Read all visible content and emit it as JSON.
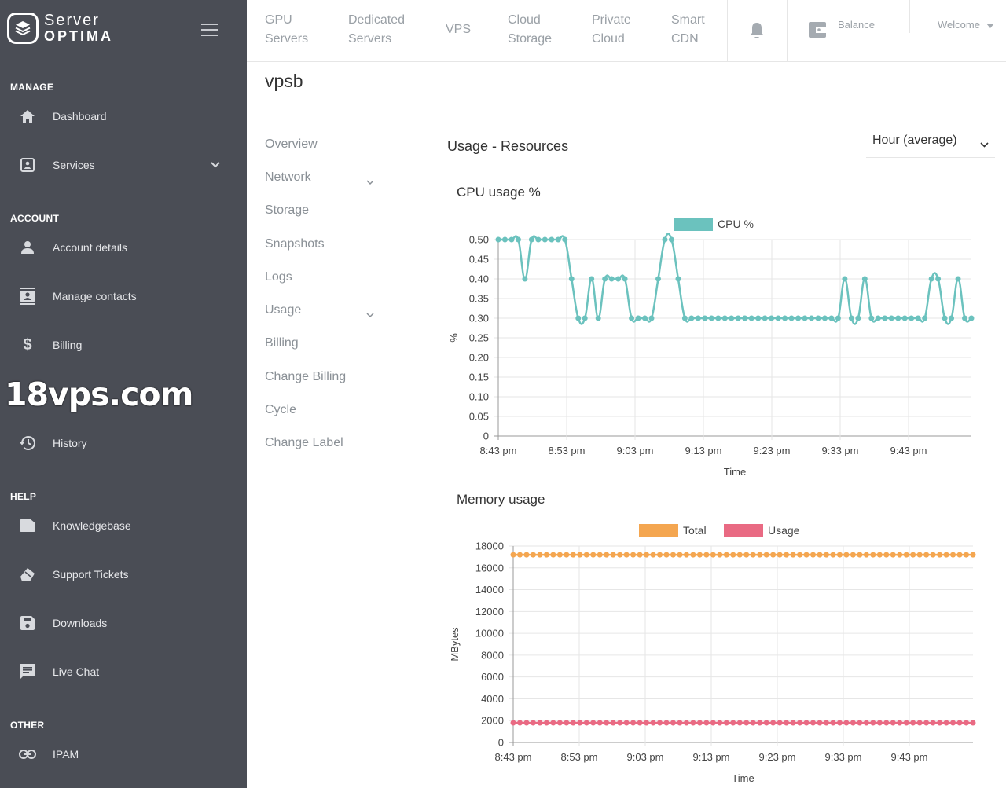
{
  "brand": {
    "line1": "Server",
    "line2": "OPTIMA"
  },
  "sidebar": {
    "sections": {
      "manage": "MANAGE",
      "account": "ACCOUNT",
      "help": "HELP",
      "other": "OTHER"
    },
    "items": {
      "dashboard": "Dashboard",
      "services": "Services",
      "account_details": "Account details",
      "manage_contacts": "Manage contacts",
      "billing": "Billing",
      "history": "History",
      "knowledgebase": "Knowledgebase",
      "support_tickets": "Support Tickets",
      "downloads": "Downloads",
      "live_chat": "Live Chat",
      "ipam": "IPAM"
    }
  },
  "watermark": "18vps.com",
  "topbar": {
    "gpu_1": "GPU",
    "gpu_2": "Servers",
    "dedicated_1": "Dedicated",
    "dedicated_2": "Servers",
    "vps": "VPS",
    "cloud_1": "Cloud",
    "cloud_2": "Storage",
    "private_1": "Private",
    "private_2": "Cloud",
    "smart_1": "Smart",
    "smart_2": "CDN",
    "balance": "Balance",
    "welcome": "Welcome"
  },
  "page": {
    "title": "vpsb"
  },
  "subnav": {
    "overview": "Overview",
    "network": "Network",
    "storage": "Storage",
    "snapshots": "Snapshots",
    "logs": "Logs",
    "usage": "Usage",
    "billing": "Billing",
    "change_billing": "Change Billing",
    "cycle": "Cycle",
    "change_label": "Change Label"
  },
  "usage": {
    "title": "Usage - Resources",
    "range": "Hour (average)"
  },
  "colors": {
    "sidebar_bg": "#4a4d55",
    "cpu": "#6bc2be",
    "mem_total": "#f4a650",
    "mem_usage": "#e96a83"
  },
  "chart_data": [
    {
      "type": "line",
      "title": "CPU usage %",
      "xlabel": "Time",
      "ylabel": "%",
      "ylim": [
        0,
        0.5
      ],
      "y_ticks": [
        "0.50",
        "0.45",
        "0.40",
        "0.35",
        "0.30",
        "0.25",
        "0.20",
        "0.15",
        "0.10",
        "0.05",
        "0"
      ],
      "x_tick_labels": [
        "8:43 pm",
        "8:53 pm",
        "9:03 pm",
        "9:13 pm",
        "9:23 pm",
        "9:33 pm",
        "9:43 pm"
      ],
      "series": [
        {
          "name": "CPU %",
          "values": [
            0.5,
            0.5,
            0.5,
            0.5,
            0.4,
            0.5,
            0.5,
            0.5,
            0.5,
            0.5,
            0.5,
            0.4,
            0.3,
            0.3,
            0.4,
            0.3,
            0.4,
            0.4,
            0.4,
            0.4,
            0.3,
            0.3,
            0.3,
            0.3,
            0.4,
            0.5,
            0.5,
            0.4,
            0.3,
            0.3,
            0.3,
            0.3,
            0.3,
            0.3,
            0.3,
            0.3,
            0.3,
            0.3,
            0.3,
            0.3,
            0.3,
            0.3,
            0.3,
            0.3,
            0.3,
            0.3,
            0.3,
            0.3,
            0.3,
            0.3,
            0.3,
            0.3,
            0.4,
            0.3,
            0.3,
            0.4,
            0.3,
            0.3,
            0.3,
            0.3,
            0.3,
            0.3,
            0.3,
            0.3,
            0.3,
            0.4,
            0.4,
            0.3,
            0.3,
            0.4,
            0.3,
            0.3
          ]
        }
      ]
    },
    {
      "type": "line",
      "title": "Memory usage",
      "xlabel": "Time",
      "ylabel": "MBytes",
      "ylim": [
        0,
        18000
      ],
      "y_ticks": [
        "18000",
        "16000",
        "14000",
        "12000",
        "10000",
        "8000",
        "6000",
        "4000",
        "2000",
        "0"
      ],
      "x_tick_labels": [
        "8:43 pm",
        "8:53 pm",
        "9:03 pm",
        "9:13 pm",
        "9:23 pm",
        "9:33 pm",
        "9:43 pm"
      ],
      "series": [
        {
          "name": "Total",
          "constant_value": 17200,
          "points": 70
        },
        {
          "name": "Usage",
          "constant_value": 1800,
          "points": 70
        }
      ]
    }
  ]
}
